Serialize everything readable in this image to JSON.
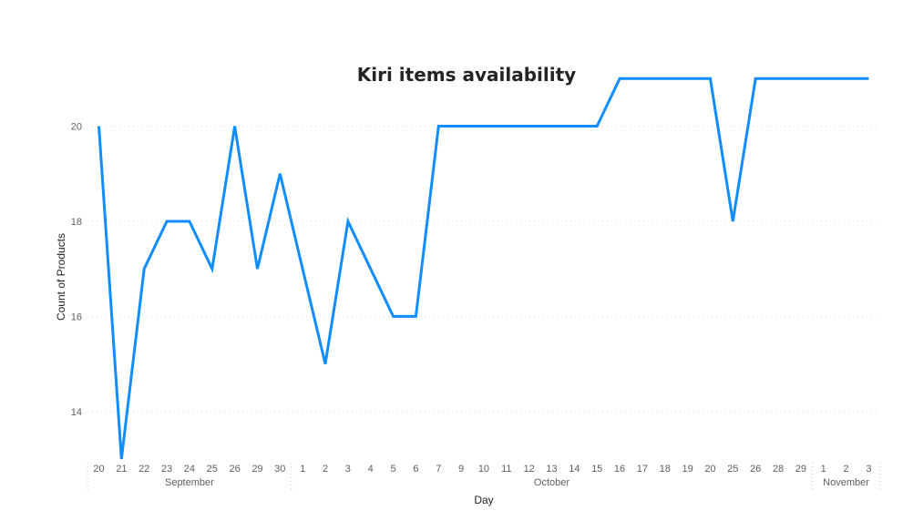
{
  "chart_data": {
    "type": "line",
    "title": "Kiri items availability",
    "xlabel": "Day",
    "ylabel": "Count of Products",
    "ylim": [
      13,
      21.6
    ],
    "yticks": [
      14,
      16,
      18,
      20
    ],
    "grid": true,
    "x": [
      "20",
      "21",
      "22",
      "23",
      "24",
      "25",
      "26",
      "29",
      "30",
      "1",
      "2",
      "3",
      "4",
      "5",
      "6",
      "7",
      "9",
      "10",
      "11",
      "12",
      "13",
      "14",
      "15",
      "16",
      "17",
      "18",
      "19",
      "20",
      "25",
      "26",
      "28",
      "29",
      "1",
      "2",
      "3"
    ],
    "months": [
      {
        "label": "September",
        "start": 0,
        "end": 8
      },
      {
        "label": "October",
        "start": 9,
        "end": 31
      },
      {
        "label": "November",
        "start": 32,
        "end": 34
      }
    ],
    "series": [
      {
        "values": [
          20,
          13,
          17,
          18,
          18,
          17,
          20,
          17,
          19,
          17,
          15,
          18,
          17,
          16,
          16,
          20,
          20,
          20,
          20,
          20,
          20,
          20,
          20,
          21,
          21,
          21,
          21,
          21,
          18,
          21,
          21,
          21,
          21,
          21,
          21
        ]
      }
    ],
    "color": "#118DFF"
  }
}
